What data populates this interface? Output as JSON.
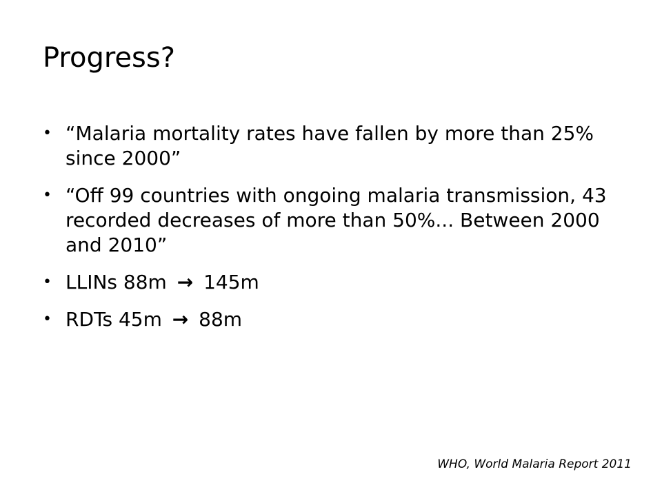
{
  "slide": {
    "title": "Progress?",
    "bullets": [
      {
        "text": "“Malaria mortality rates have fallen by more than 25% since 2000”"
      },
      {
        "text": "“Off 99 countries with ongoing malaria transmission, 43 recorded decreases of more than 50%... Between 2000 and 2010”"
      },
      {
        "from": "LLINs 88m",
        "arrow": "→",
        "to": "145m"
      },
      {
        "from": "RDTs 45m",
        "arrow": "→",
        "to": "88m"
      }
    ],
    "bullet_symbol": "•",
    "source": "WHO, World Malaria Report 2011"
  }
}
